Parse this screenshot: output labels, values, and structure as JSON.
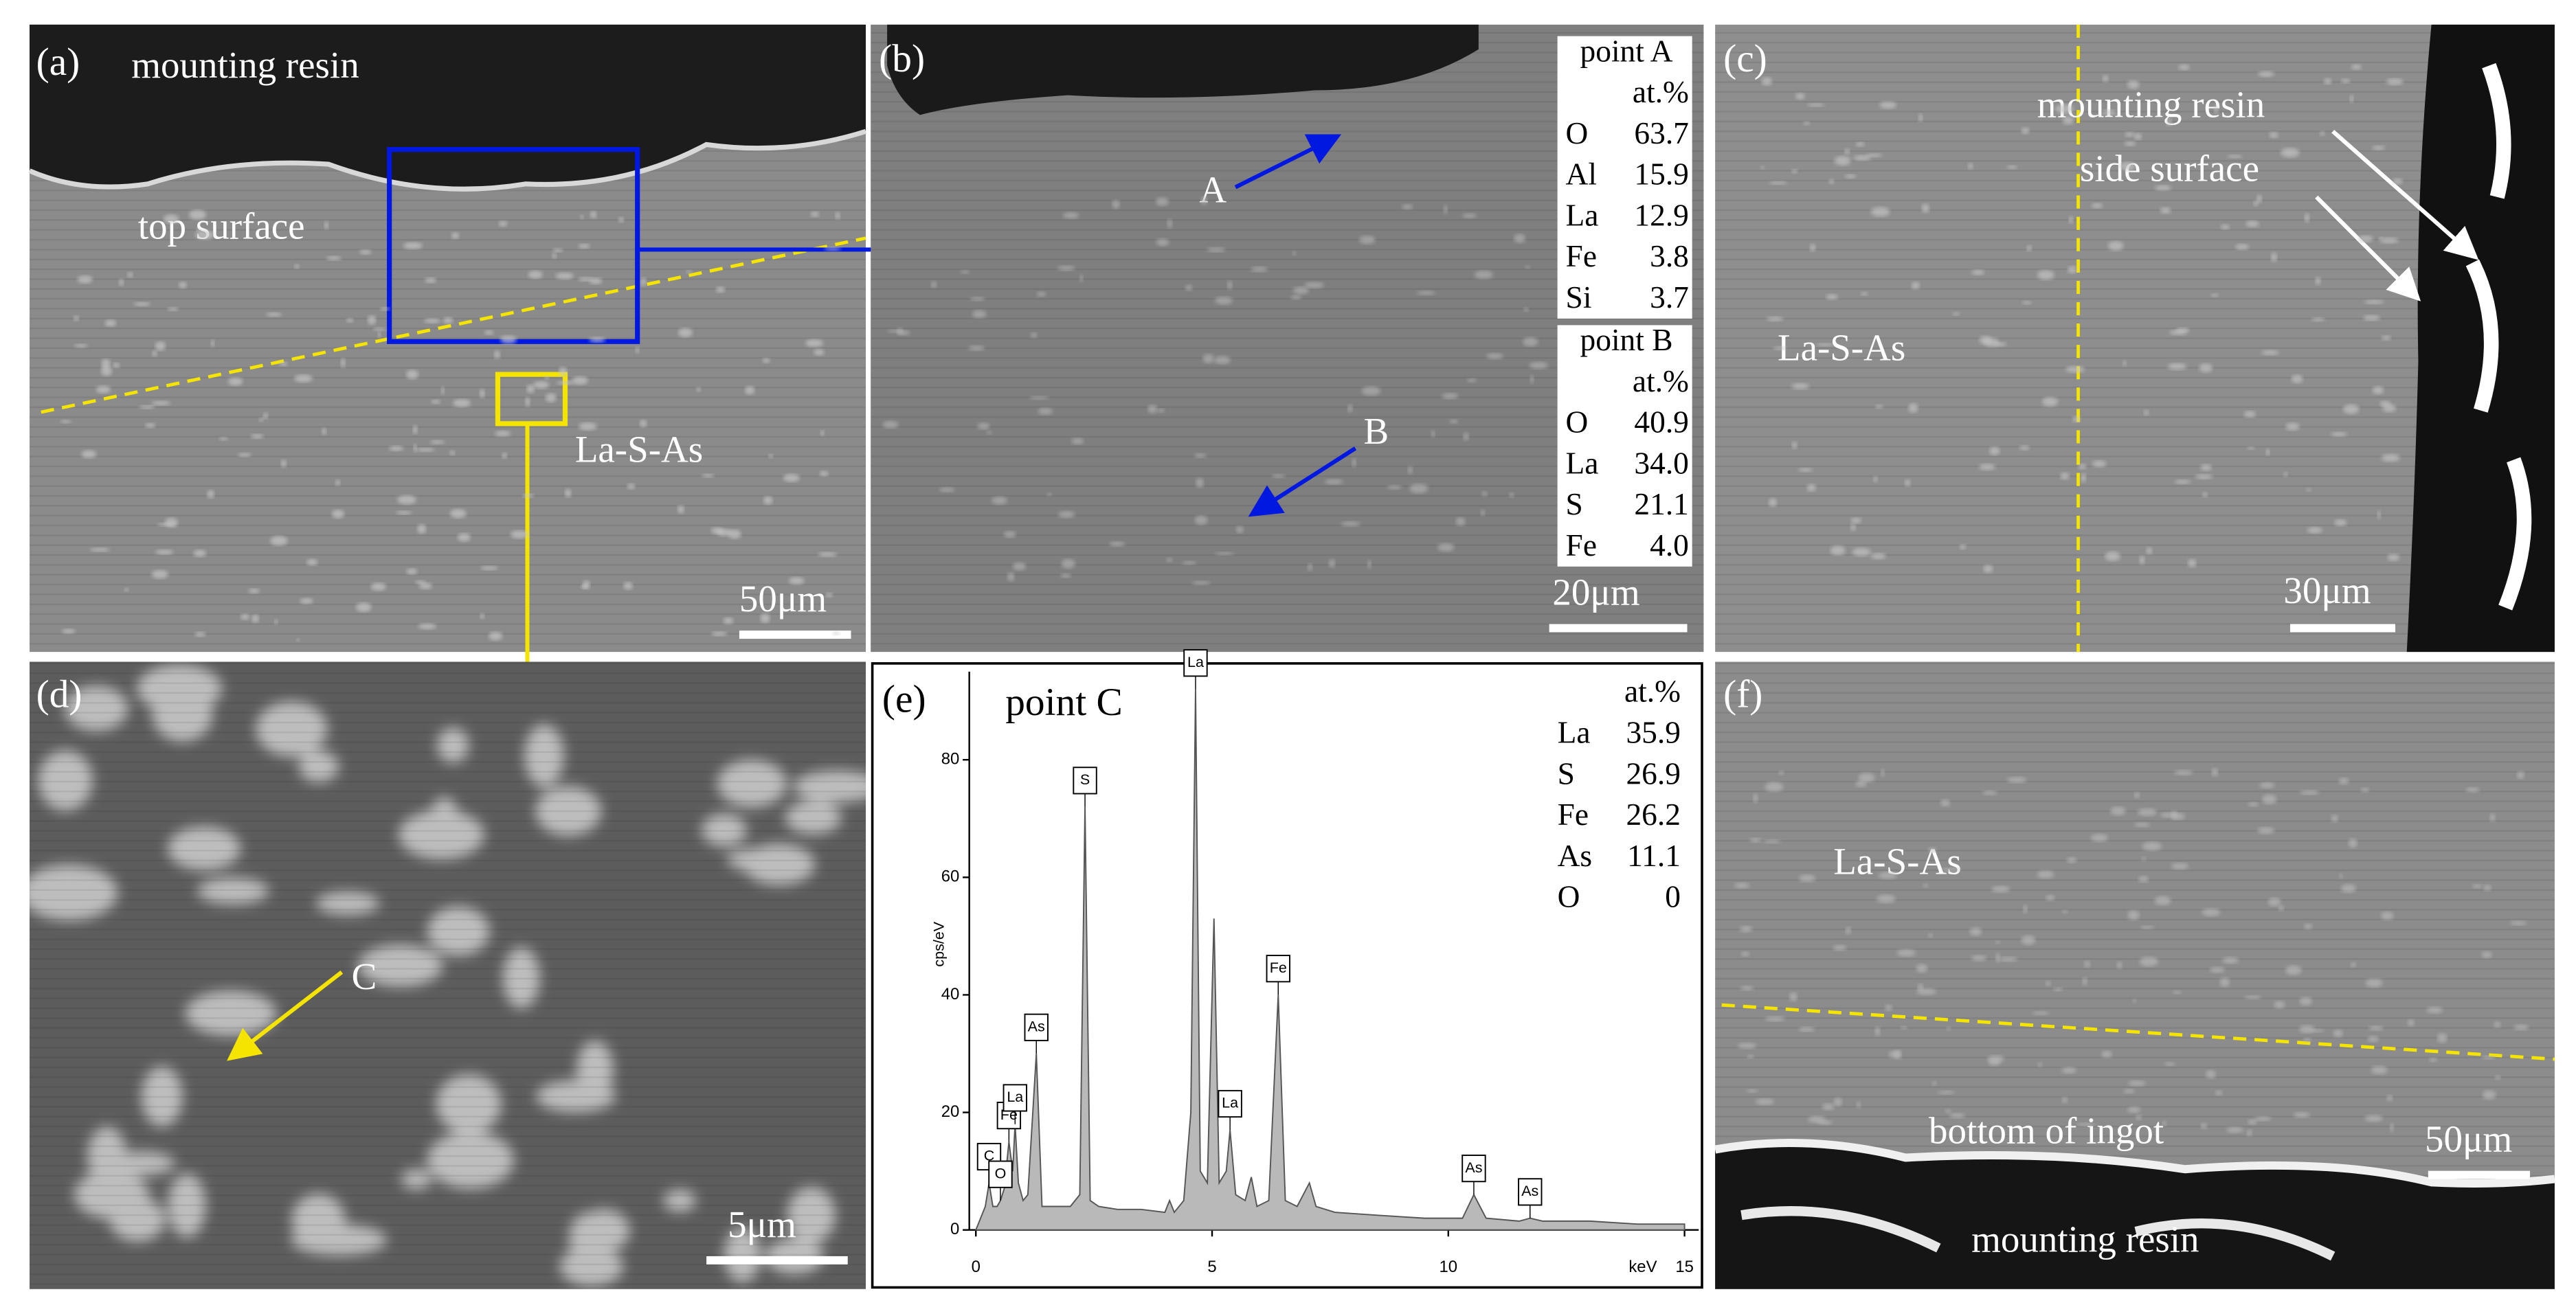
{
  "panel_a": {
    "label": "(a)",
    "resin": "mounting resin",
    "surface": "top surface",
    "phase": "La-S-As",
    "scale": "50μm"
  },
  "panel_b": {
    "label": "(b)",
    "point_a": "A",
    "point_b": "B",
    "scale": "20μm",
    "table_a": {
      "title": "point A",
      "unit": "at.%",
      "rows": [
        [
          "O",
          "63.7"
        ],
        [
          "Al",
          "15.9"
        ],
        [
          "La",
          "12.9"
        ],
        [
          "Fe",
          "3.8"
        ],
        [
          "Si",
          "3.7"
        ]
      ]
    },
    "table_b": {
      "title": "point B",
      "unit": "at.%",
      "rows": [
        [
          "O",
          "40.9"
        ],
        [
          "La",
          "34.0"
        ],
        [
          "S",
          "21.1"
        ],
        [
          "Fe",
          "4.0"
        ]
      ]
    }
  },
  "panel_c": {
    "label": "(c)",
    "resin": "mounting resin",
    "surface": "side surface",
    "phase": "La-S-As",
    "scale": "30μm"
  },
  "panel_d": {
    "label": "(d)",
    "point_c": "C",
    "scale": "5μm"
  },
  "panel_e": {
    "label": "(e)",
    "table": {
      "unit": "at.%",
      "rows": [
        [
          "La",
          "35.9"
        ],
        [
          "S",
          "26.9"
        ],
        [
          "Fe",
          "26.2"
        ],
        [
          "As",
          "11.1"
        ],
        [
          "O",
          "0"
        ]
      ]
    }
  },
  "panel_f": {
    "label": "(f)",
    "phase": "La-S-As",
    "surface": "bottom of ingot",
    "resin": "mounting resin",
    "scale": "50μm"
  },
  "chart_data": {
    "type": "area",
    "title": "point C",
    "xlabel": "keV",
    "ylabel": "cps/eV",
    "color": "#b9b9b9",
    "x": [
      0,
      0.2,
      0.28,
      0.36,
      0.45,
      0.52,
      0.6,
      0.7,
      0.78,
      0.83,
      0.9,
      1.0,
      1.1,
      1.28,
      1.4,
      1.6,
      2.0,
      2.2,
      2.31,
      2.42,
      2.6,
      3.0,
      3.5,
      4.0,
      4.1,
      4.2,
      4.4,
      4.55,
      4.65,
      4.75,
      4.9,
      5.04,
      5.15,
      5.3,
      5.38,
      5.5,
      5.7,
      5.83,
      5.95,
      6.2,
      6.4,
      6.55,
      6.8,
      7.06,
      7.2,
      7.6,
      8.5,
      9.5,
      10.3,
      10.54,
      10.8,
      11.5,
      11.73,
      12,
      13,
      14,
      15
    ],
    "values": [
      0,
      4,
      8,
      4,
      4,
      5,
      7,
      15,
      10,
      18,
      8,
      5,
      6,
      30,
      4,
      4,
      4,
      6,
      72,
      5,
      4,
      3.5,
      3.5,
      3,
      5,
      3,
      5,
      20,
      92,
      10,
      8,
      53,
      8,
      10,
      17,
      6,
      5,
      9,
      4,
      5,
      40,
      5,
      4,
      8,
      4,
      3,
      2.5,
      2,
      2,
      6,
      2,
      1.5,
      2,
      1.5,
      1.5,
      1,
      1
    ],
    "xlim": [
      0,
      15.3
    ],
    "ylim": [
      0,
      95
    ],
    "xticks": [
      0,
      5,
      10,
      15
    ],
    "yticks": [
      0,
      20,
      40,
      60,
      80
    ],
    "peaks": [
      {
        "label": "C",
        "x": 0.28,
        "y": 8
      },
      {
        "label": "O",
        "x": 0.52,
        "y": 5
      },
      {
        "label": "Fe",
        "x": 0.7,
        "y": 15
      },
      {
        "label": "La",
        "x": 0.83,
        "y": 18
      },
      {
        "label": "As",
        "x": 1.28,
        "y": 30
      },
      {
        "label": "S",
        "x": 2.31,
        "y": 72
      },
      {
        "label": "La",
        "x": 4.65,
        "y": 92
      },
      {
        "label": "La",
        "x": 5.38,
        "y": 17
      },
      {
        "label": "Fe",
        "x": 6.4,
        "y": 40
      },
      {
        "label": "As",
        "x": 10.54,
        "y": 6
      },
      {
        "label": "As",
        "x": 11.73,
        "y": 2
      }
    ]
  }
}
